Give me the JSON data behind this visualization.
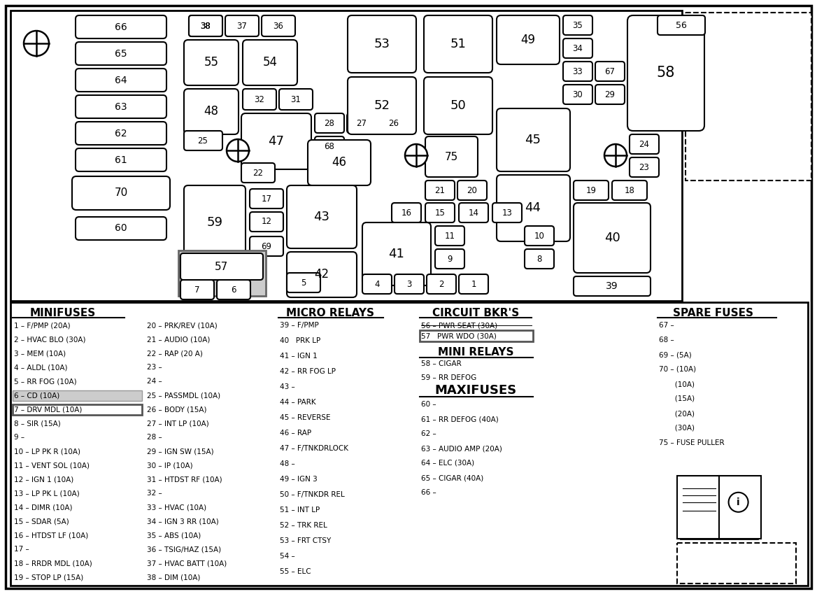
{
  "bg_color": "#ffffff",
  "fig_width": 11.68,
  "fig_height": 8.49,
  "minifuses_col1": [
    "1 – F/PMP (20A)",
    "2 – HVAC BLO (30A)",
    "3 – MEM (10A)",
    "4 – ALDL (10A)",
    "5 – RR FOG (10A)",
    "6 – CD (10A)",
    "7 – DRV MDL (10A)",
    "8 – SIR (15A)",
    "9 –",
    "10 – LP PK R (10A)",
    "11 – VENT SOL (10A)",
    "12 – IGN 1 (10A)",
    "13 – LP PK L (10A)",
    "14 – DIMR (10A)",
    "15 – SDAR (5A)",
    "16 – HTDST LF (10A)",
    "17 –",
    "18 – RRDR MDL (10A)",
    "19 – STOP LP (15A)"
  ],
  "minifuses_col2": [
    "20 – PRK/REV (10A)",
    "21 – AUDIO (10A)",
    "22 – RAP (20 A)",
    "23 –",
    "24 –",
    "25 – PASSMDL (10A)",
    "26 – BODY (15A)",
    "27 – INT LP (10A)",
    "28 –",
    "29 – IGN SW (15A)",
    "30 – IP (10A)",
    "31 – HTDST RF (10A)",
    "32 –",
    "33 – HVAC (10A)",
    "34 – IGN 3 RR (10A)",
    "35 – ABS (10A)",
    "36 – TSIG/HAZ (15A)",
    "37 – HVAC BATT (10A)",
    "38 – DIM (10A)"
  ],
  "micro_relays": [
    "39 – F/PMP",
    "40   PRK LP",
    "41 – IGN 1",
    "42 – RR FOG LP",
    "43 –",
    "44 – PARK",
    "45 – REVERSE",
    "46 – RAP",
    "47 – F/TNKDRLOCK",
    "48 –",
    "49 – IGN 3",
    "50 – F/TNKDR REL",
    "51 – INT LP",
    "52 – TRK REL",
    "53 – FRT CTSY",
    "54 –",
    "55 – ELC"
  ],
  "circuit_bkrs_strike": "56 – PWR SEAT (30A)",
  "circuit_bkrs_box": "57   PWR WDO (30A)",
  "mini_relays": [
    "58 – CIGAR",
    "59 – RR DEFOG"
  ],
  "maxifuses": [
    "60 –",
    "61 – RR DEFOG (40A)",
    "62 –",
    "63 – AUDIO AMP (20A)",
    "64 – ELC (30A)",
    "65 – CIGAR (40A)",
    "66 –"
  ],
  "spare_fuses": [
    "67 –",
    "68 –",
    "69 – (5A)",
    "70 – (10A)",
    "       (10A)",
    "       (15A)",
    "       (20A)",
    "       (30A)",
    "75 – FUSE PULLER"
  ]
}
